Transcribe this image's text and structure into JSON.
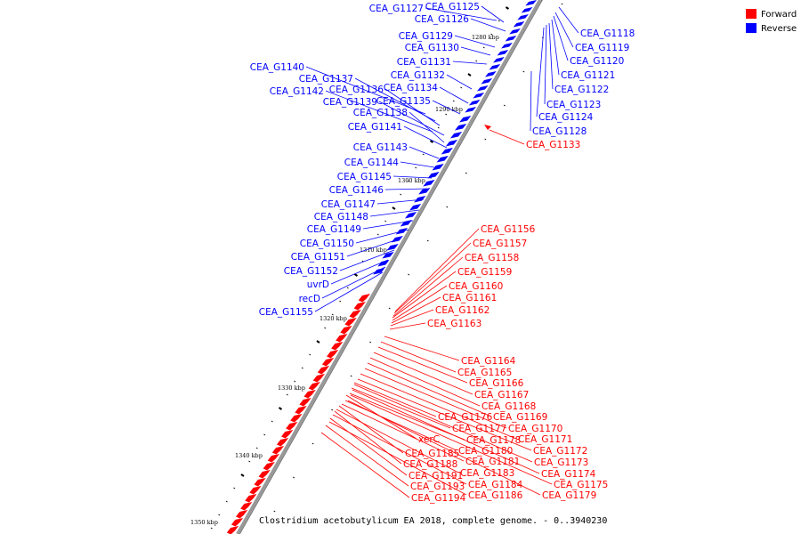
{
  "caption": "Clostridium acetobutylicum EA 2018, complete genome. - 0..3940230",
  "legend": [
    {
      "label": "Forward",
      "color": "#ff0000"
    },
    {
      "label": "Reverse",
      "color": "#0000ff"
    }
  ],
  "colors": {
    "forward": "#ff0000",
    "reverse": "#0000ff",
    "backbone": "#999999"
  },
  "ticks": [
    "1280 kbp",
    "1290 kbp",
    "1300 kbp",
    "1310 kbp",
    "1320 kbp",
    "1330 kbp",
    "1340 kbp",
    "1350 kbp"
  ],
  "reverse_labels": [
    "CEA_G1127",
    "CEA_G1125",
    "CEA_G1126",
    "CEA_G1118",
    "CEA_G1129",
    "CEA_G1119",
    "CEA_G1130",
    "CEA_G1120",
    "CEA_G1131",
    "CEA_G1140",
    "CEA_G1121",
    "CEA_G1137",
    "CEA_G1132",
    "CEA_G1136",
    "CEA_G1142",
    "CEA_G1134",
    "CEA_G1122",
    "CEA_G1139",
    "CEA_G1135",
    "CEA_G1123",
    "CEA_G1138",
    "CEA_G1124",
    "CEA_G1141",
    "CEA_G1128",
    "CEA_G1143",
    "CEA_G1144",
    "CEA_G1145",
    "CEA_G1146",
    "CEA_G1147",
    "CEA_G1148",
    "CEA_G1149",
    "CEA_G1150",
    "CEA_G1151",
    "CEA_G1152",
    "uvrD",
    "recD",
    "CEA_G1155"
  ],
  "forward_labels": [
    "CEA_G1133",
    "CEA_G1156",
    "CEA_G1157",
    "CEA_G1158",
    "CEA_G1159",
    "CEA_G1160",
    "CEA_G1161",
    "CEA_G1162",
    "CEA_G1163",
    "CEA_G1164",
    "CEA_G1165",
    "CEA_G1166",
    "CEA_G1167",
    "CEA_G1168",
    "CEA_G1176",
    "CEA_G1169",
    "CEA_G1177",
    "CEA_G1170",
    "xerC",
    "CEA_G1178",
    "CEA_G1171",
    "CEA_G1180",
    "CEA_G1185",
    "CEA_G1172",
    "CEA_G1181",
    "CEA_G1188",
    "CEA_G1173",
    "CEA_G1183",
    "CEA_G1174",
    "CEA_G1191",
    "CEA_G1184",
    "CEA_G1175",
    "CEA_G1193",
    "CEA_G1186",
    "CEA_G1179",
    "CEA_G1194"
  ]
}
